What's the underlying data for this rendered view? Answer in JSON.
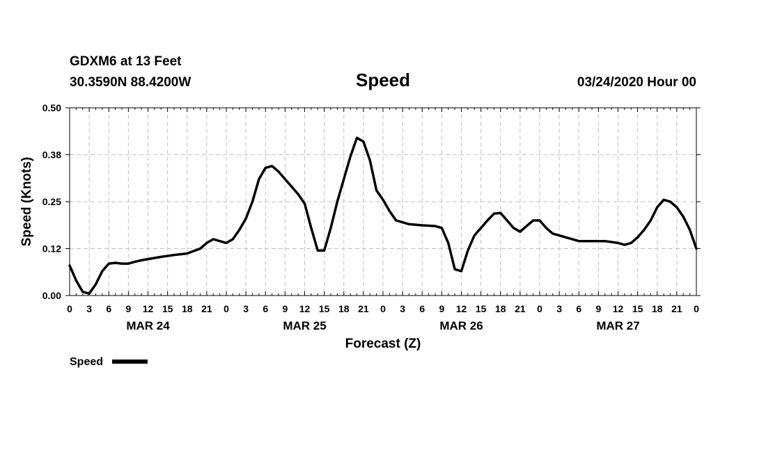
{
  "header": {
    "station": "GDXM6 at 13 Feet",
    "location": "30.3590N 88.4200W",
    "title": "Speed",
    "timestamp": "03/24/2020 Hour 00"
  },
  "chart_data": {
    "type": "line",
    "title": "Speed",
    "xlabel": "Forecast (Z)",
    "ylabel": "Speed (Knots)",
    "x_unit": "hours since 03/24/2020 00Z",
    "xlim": [
      0,
      96
    ],
    "ylim": [
      0,
      0.5
    ],
    "y_ticks": [
      "0.00",
      "0.12",
      "0.25",
      "0.38",
      "0.50"
    ],
    "y_tick_values": [
      0,
      0.125,
      0.25,
      0.375,
      0.5
    ],
    "x_ticks": [
      0,
      3,
      6,
      9,
      12,
      15,
      18,
      21,
      24,
      27,
      30,
      33,
      36,
      39,
      42,
      45,
      48,
      51,
      54,
      57,
      60,
      63,
      66,
      69,
      72,
      75,
      78,
      81,
      84,
      87,
      90,
      93,
      96
    ],
    "x_tick_labels": [
      "0",
      "3",
      "6",
      "9",
      "12",
      "15",
      "18",
      "21",
      "0",
      "3",
      "6",
      "9",
      "12",
      "15",
      "18",
      "21",
      "0",
      "3",
      "6",
      "9",
      "12",
      "15",
      "18",
      "21",
      "0",
      "3",
      "6",
      "9",
      "12",
      "15",
      "18",
      "21",
      "0"
    ],
    "day_labels": [
      {
        "label": "MAR 24",
        "x": 12
      },
      {
        "label": "MAR 25",
        "x": 36
      },
      {
        "label": "MAR 26",
        "x": 60
      },
      {
        "label": "MAR 27",
        "x": 84
      }
    ],
    "grid": true,
    "legend": "bottom-left",
    "series": [
      {
        "name": "Speed",
        "color": "#000000",
        "x": [
          0,
          1,
          2,
          3,
          4,
          5,
          6,
          7,
          8,
          9,
          10,
          11,
          12,
          14,
          16,
          18,
          20,
          21,
          22,
          23,
          24,
          25,
          26,
          27,
          28,
          29,
          30,
          31,
          32,
          33,
          34,
          35,
          36,
          37,
          38,
          39,
          40,
          41,
          42,
          43,
          44,
          45,
          46,
          47,
          48,
          49,
          50,
          51,
          52,
          54,
          56,
          57,
          58,
          59,
          60,
          61,
          62,
          63,
          64,
          65,
          66,
          67,
          68,
          69,
          70,
          71,
          72,
          73,
          74,
          75,
          76,
          78,
          80,
          82,
          84,
          85,
          86,
          87,
          88,
          89,
          90,
          91,
          92,
          93,
          94,
          95,
          96
        ],
        "y": [
          0.08,
          0.04,
          0.01,
          0.005,
          0.03,
          0.065,
          0.085,
          0.087,
          0.085,
          0.085,
          0.09,
          0.094,
          0.097,
          0.103,
          0.108,
          0.112,
          0.125,
          0.14,
          0.15,
          0.145,
          0.14,
          0.15,
          0.175,
          0.205,
          0.25,
          0.31,
          0.34,
          0.345,
          0.33,
          0.31,
          0.29,
          0.27,
          0.245,
          0.18,
          0.12,
          0.12,
          0.18,
          0.25,
          0.31,
          0.37,
          0.42,
          0.41,
          0.36,
          0.28,
          0.255,
          0.225,
          0.2,
          0.195,
          0.19,
          0.187,
          0.185,
          0.18,
          0.14,
          0.07,
          0.065,
          0.12,
          0.16,
          0.18,
          0.2,
          0.218,
          0.22,
          0.2,
          0.18,
          0.17,
          0.185,
          0.2,
          0.2,
          0.18,
          0.165,
          0.16,
          0.155,
          0.145,
          0.145,
          0.145,
          0.14,
          0.135,
          0.14,
          0.155,
          0.175,
          0.2,
          0.235,
          0.255,
          0.25,
          0.235,
          0.21,
          0.175,
          0.125
        ]
      }
    ]
  }
}
